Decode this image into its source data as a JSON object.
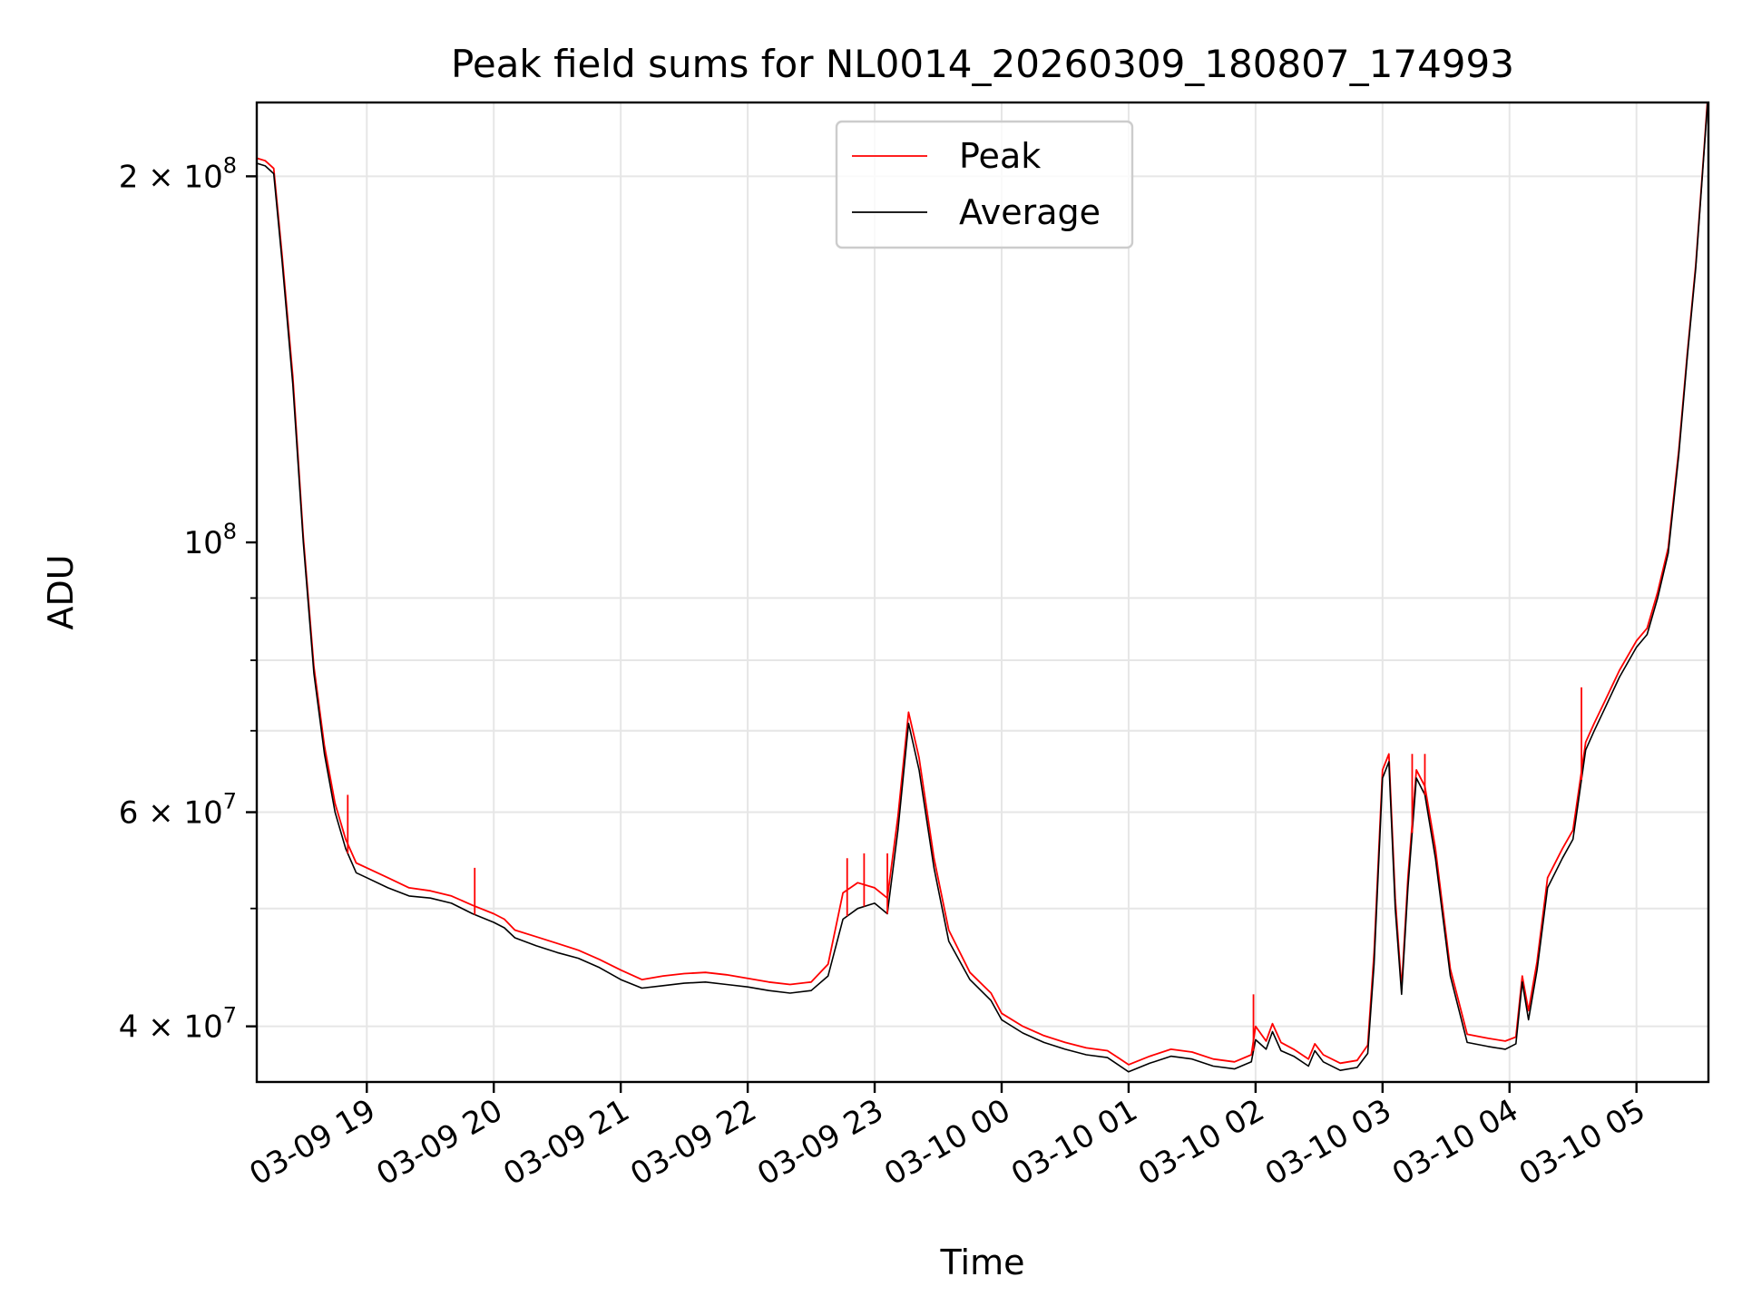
{
  "chart_data": {
    "type": "line",
    "title": "Peak field sums for NL0014_20260309_180807_174993",
    "xlabel": "Time",
    "ylabel": "ADU",
    "yscale": "log",
    "xlim": [
      "2026-03-09 18:08",
      "2026-03-10 05:34"
    ],
    "ylim": [
      36000000,
      230000000
    ],
    "grid": true,
    "legend_position": "top-center",
    "x_ticks": [
      "03-09 19",
      "03-09 20",
      "03-09 21",
      "03-09 22",
      "03-09 23",
      "03-10 00",
      "03-10 01",
      "03-10 02",
      "03-10 03",
      "03-10 04",
      "03-10 05"
    ],
    "y_ticks": [
      {
        "value": 40000000,
        "base": "4 × 10",
        "exp": "7"
      },
      {
        "value": 60000000,
        "base": "6 × 10",
        "exp": "7"
      },
      {
        "value": 100000000,
        "base": "10",
        "exp": "8"
      },
      {
        "value": 200000000,
        "base": "2 × 10",
        "exp": "8"
      }
    ],
    "series": [
      {
        "name": "Peak",
        "color": "#ff0000"
      },
      {
        "name": "Average",
        "color": "#000000"
      }
    ],
    "x": [
      "2026-03-09 18:08",
      "2026-03-09 18:12",
      "2026-03-09 18:16",
      "2026-03-09 18:20",
      "2026-03-09 18:25",
      "2026-03-09 18:30",
      "2026-03-09 18:35",
      "2026-03-09 18:40",
      "2026-03-09 18:45",
      "2026-03-09 18:50",
      "2026-03-09 18:55",
      "2026-03-09 19:00",
      "2026-03-09 19:10",
      "2026-03-09 19:20",
      "2026-03-09 19:30",
      "2026-03-09 19:40",
      "2026-03-09 19:50",
      "2026-03-09 20:00",
      "2026-03-09 20:05",
      "2026-03-09 20:10",
      "2026-03-09 20:20",
      "2026-03-09 20:30",
      "2026-03-09 20:40",
      "2026-03-09 20:50",
      "2026-03-09 21:00",
      "2026-03-09 21:10",
      "2026-03-09 21:20",
      "2026-03-09 21:30",
      "2026-03-09 21:40",
      "2026-03-09 21:50",
      "2026-03-09 22:00",
      "2026-03-09 22:10",
      "2026-03-09 22:20",
      "2026-03-09 22:30",
      "2026-03-09 22:38",
      "2026-03-09 22:45",
      "2026-03-09 22:52",
      "2026-03-09 23:00",
      "2026-03-09 23:06",
      "2026-03-09 23:11",
      "2026-03-09 23:16",
      "2026-03-09 23:21",
      "2026-03-09 23:28",
      "2026-03-09 23:35",
      "2026-03-09 23:45",
      "2026-03-09 23:55",
      "2026-03-10 00:00",
      "2026-03-10 00:10",
      "2026-03-10 00:20",
      "2026-03-10 00:30",
      "2026-03-10 00:40",
      "2026-03-10 00:50",
      "2026-03-10 00:55",
      "2026-03-10 01:00",
      "2026-03-10 01:10",
      "2026-03-10 01:20",
      "2026-03-10 01:30",
      "2026-03-10 01:40",
      "2026-03-10 01:50",
      "2026-03-10 01:58",
      "2026-03-10 02:00",
      "2026-03-10 02:05",
      "2026-03-10 02:08",
      "2026-03-10 02:12",
      "2026-03-10 02:18",
      "2026-03-10 02:25",
      "2026-03-10 02:28",
      "2026-03-10 02:32",
      "2026-03-10 02:40",
      "2026-03-10 02:48",
      "2026-03-10 02:53",
      "2026-03-10 02:56",
      "2026-03-10 03:00",
      "2026-03-10 03:03",
      "2026-03-10 03:06",
      "2026-03-10 03:09",
      "2026-03-10 03:12",
      "2026-03-10 03:16",
      "2026-03-10 03:20",
      "2026-03-10 03:25",
      "2026-03-10 03:32",
      "2026-03-10 03:40",
      "2026-03-10 03:50",
      "2026-03-10 03:58",
      "2026-03-10 04:03",
      "2026-03-10 04:06",
      "2026-03-10 04:09",
      "2026-03-10 04:13",
      "2026-03-10 04:18",
      "2026-03-10 04:25",
      "2026-03-10 04:30",
      "2026-03-10 04:33",
      "2026-03-10 04:36",
      "2026-03-10 04:40",
      "2026-03-10 04:45",
      "2026-03-10 04:52",
      "2026-03-10 05:00",
      "2026-03-10 05:05",
      "2026-03-10 05:10",
      "2026-03-10 05:15",
      "2026-03-10 05:20",
      "2026-03-10 05:24",
      "2026-03-10 05:28",
      "2026-03-10 05:32",
      "2026-03-10 05:34"
    ],
    "average": [
      205000000,
      204000000,
      201000000,
      170000000,
      135000000,
      100000000,
      78000000,
      67000000,
      60000000,
      56000000,
      53500000,
      53000000,
      52000000,
      51200000,
      51000000,
      50500000,
      49500000,
      48700000,
      48200000,
      47300000,
      46600000,
      46000000,
      45500000,
      44700000,
      43700000,
      43000000,
      43200000,
      43400000,
      43500000,
      43300000,
      43100000,
      42800000,
      42600000,
      42800000,
      44000000,
      49000000,
      50000000,
      50500000,
      49500000,
      58000000,
      71000000,
      65000000,
      54000000,
      47000000,
      43700000,
      42000000,
      40500000,
      39500000,
      38800000,
      38300000,
      37900000,
      37700000,
      37200000,
      36700000,
      37300000,
      37800000,
      37600000,
      37100000,
      36900000,
      37400000,
      39000000,
      38300000,
      39600000,
      38200000,
      37800000,
      37100000,
      38200000,
      37400000,
      36800000,
      37000000,
      38000000,
      45000000,
      64000000,
      66000000,
      50000000,
      42500000,
      52000000,
      64000000,
      62000000,
      55000000,
      44000000,
      38800000,
      38500000,
      38300000,
      38700000,
      43500000,
      40500000,
      44500000,
      52000000,
      55000000,
      57000000,
      62000000,
      67500000,
      70000000,
      73000000,
      77500000,
      82000000,
      84000000,
      90000000,
      98000000,
      118000000,
      142000000,
      168000000,
      210000000,
      235000000
    ],
    "peak": [
      207000000,
      206000000,
      203000000,
      172000000,
      137000000,
      101000000,
      79000000,
      68000000,
      61000000,
      57000000,
      54500000,
      54000000,
      53000000,
      52000000,
      51700000,
      51200000,
      50300000,
      49500000,
      49000000,
      48000000,
      47400000,
      46800000,
      46200000,
      45400000,
      44500000,
      43700000,
      44000000,
      44200000,
      44300000,
      44100000,
      43800000,
      43500000,
      43300000,
      43500000,
      45000000,
      51500000,
      52500000,
      52000000,
      51000000,
      59500000,
      72500000,
      66500000,
      55000000,
      48000000,
      44300000,
      42600000,
      41000000,
      40000000,
      39300000,
      38800000,
      38400000,
      38200000,
      37700000,
      37200000,
      37800000,
      38300000,
      38100000,
      37600000,
      37400000,
      37900000,
      40000000,
      38900000,
      40200000,
      38800000,
      38300000,
      37600000,
      38700000,
      37900000,
      37300000,
      37500000,
      38600000,
      46000000,
      65000000,
      67000000,
      51000000,
      43000000,
      53000000,
      65000000,
      63000000,
      56000000,
      44600000,
      39400000,
      39100000,
      38900000,
      39200000,
      44000000,
      41200000,
      45200000,
      53000000,
      56000000,
      58000000,
      63000000,
      68500000,
      71000000,
      74000000,
      78500000,
      83000000,
      85000000,
      91000000,
      99000000,
      119000000,
      143000000,
      169000000,
      211000000,
      237000000
    ],
    "spikes": [
      {
        "x": "2026-03-09 18:51",
        "y": 62000000
      },
      {
        "x": "2026-03-09 19:51",
        "y": 54000000
      },
      {
        "x": "2026-03-09 22:47",
        "y": 55000000
      },
      {
        "x": "2026-03-09 22:55",
        "y": 55500000
      },
      {
        "x": "2026-03-09 23:06",
        "y": 55500000
      },
      {
        "x": "2026-03-10 01:59",
        "y": 42500000
      },
      {
        "x": "2026-03-10 03:14",
        "y": 67000000
      },
      {
        "x": "2026-03-10 03:20",
        "y": 67000000
      },
      {
        "x": "2026-03-10 04:34",
        "y": 76000000
      }
    ]
  }
}
